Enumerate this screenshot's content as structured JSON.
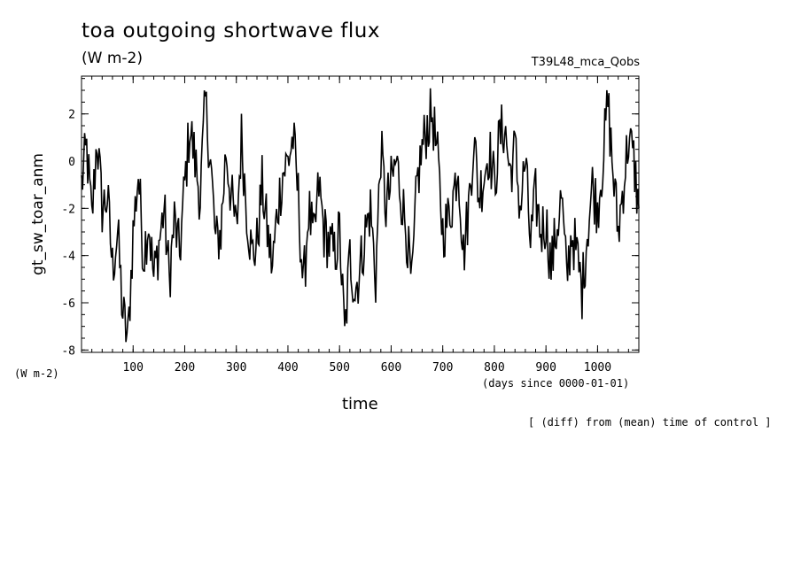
{
  "header": {
    "title": "toa outgoing shortwave flux",
    "units": "(W m-2)",
    "run_name": "T39L48_mca_Qobs"
  },
  "footer": {
    "note": "[ (diff) from (mean) time of control ]"
  },
  "chart_data": {
    "type": "line",
    "xlabel": "time",
    "xunits": "(days since 0000-01-01)",
    "ylabel": "gt_sw_toar_anm",
    "yunits": "(W m-2)",
    "xlim": [
      0,
      1080
    ],
    "ylim": [
      -8.1,
      3.6
    ],
    "xticks": [
      100,
      200,
      300,
      400,
      500,
      600,
      700,
      800,
      900,
      1000
    ],
    "yticks": [
      -8,
      -6,
      -4,
      -2,
      0,
      2
    ],
    "xminor_step": 20,
    "yminor_step": 0.5,
    "grid": false,
    "series": [
      {
        "color": "#000000",
        "x": [
          0,
          10,
          20,
          30,
          40,
          50,
          60,
          70,
          80,
          90,
          100,
          110,
          120,
          130,
          140,
          150,
          160,
          170,
          180,
          190,
          200,
          210,
          220,
          230,
          240,
          250,
          260,
          270,
          280,
          290,
          300,
          310,
          320,
          330,
          340,
          350,
          360,
          370,
          380,
          390,
          400,
          410,
          420,
          430,
          440,
          450,
          460,
          470,
          480,
          490,
          500,
          510,
          520,
          530,
          540,
          550,
          560,
          570,
          580,
          590,
          600,
          610,
          620,
          630,
          640,
          650,
          660,
          670,
          680,
          690,
          700,
          710,
          720,
          730,
          740,
          750,
          760,
          770,
          780,
          790,
          800,
          810,
          820,
          830,
          840,
          850,
          860,
          870,
          880,
          890,
          900,
          910,
          920,
          930,
          940,
          950,
          960,
          970,
          980,
          990,
          1000,
          1010,
          1020,
          1030,
          1040,
          1050,
          1060,
          1070,
          1080
        ],
        "y": [
          -1.0,
          0.5,
          -2.5,
          1.0,
          -2.0,
          -1.5,
          -4.5,
          -3.0,
          -6.5,
          -7.6,
          -3.0,
          -0.5,
          -4.0,
          -2.5,
          -5.0,
          -3.5,
          -2.0,
          -5.0,
          -2.5,
          -4.0,
          -1.0,
          1.5,
          0.0,
          -1.5,
          2.5,
          0.0,
          -3.5,
          -3.0,
          0.5,
          -1.5,
          -3.0,
          1.0,
          -2.0,
          -4.0,
          -3.5,
          -1.0,
          -3.0,
          -4.5,
          -2.0,
          -0.5,
          0.0,
          1.0,
          -1.5,
          -5.5,
          -2.0,
          -3.5,
          -1.0,
          -3.0,
          -3.5,
          -4.0,
          -3.0,
          -7.5,
          -4.0,
          -5.5,
          -4.5,
          -3.0,
          -2.0,
          -5.0,
          0.5,
          -2.0,
          -1.0,
          0.0,
          -1.5,
          -3.0,
          -5.5,
          -1.0,
          0.5,
          1.5,
          2.0,
          0.0,
          -3.0,
          -2.5,
          -1.5,
          0.0,
          -4.0,
          -2.0,
          1.0,
          -1.5,
          -0.5,
          0.5,
          -1.0,
          1.0,
          1.5,
          -0.5,
          0.5,
          -2.0,
          0.0,
          -3.5,
          -1.5,
          -3.0,
          -2.5,
          -4.5,
          -3.0,
          -1.5,
          -5.0,
          -3.0,
          -4.0,
          -5.5,
          -3.0,
          -1.0,
          -2.0,
          0.0,
          2.5,
          -0.5,
          -3.0,
          -1.0,
          1.0,
          0.0,
          -2.0
        ]
      }
    ]
  }
}
